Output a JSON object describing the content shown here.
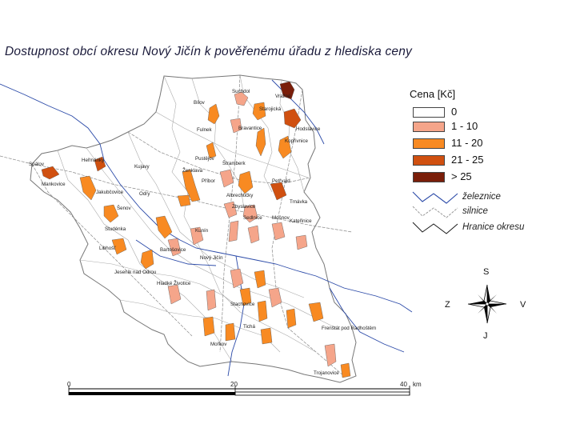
{
  "map": {
    "title": "Dostupnost obcí okresu Nový Jičín k pověřenému úřadu z hlediska ceny"
  },
  "legend": {
    "title": "Cena [Kč]",
    "price_classes": [
      {
        "label": "0",
        "color": "#ffffff"
      },
      {
        "label": "1 - 10",
        "color": "#f5a58a"
      },
      {
        "label": "11 - 20",
        "color": "#f88a22"
      },
      {
        "label": "21 - 25",
        "color": "#d05010"
      },
      {
        "label": "> 25",
        "color": "#7a1e0a"
      }
    ],
    "line_types": [
      {
        "label": "železnice",
        "color": "#2b4aa8"
      },
      {
        "label": "silnice",
        "color": "#9a9a9a"
      },
      {
        "label": "Hranice okresu",
        "color": "#1a1a1a"
      }
    ]
  },
  "compass": {
    "north": "S",
    "south": "J",
    "west": "Z",
    "east": "V"
  },
  "scale": {
    "ticks": [
      "0",
      "20",
      "40"
    ],
    "unit": "km"
  },
  "places": [
    "Vražné",
    "Suchdol",
    "Bílov",
    "Starojická",
    "Bravantice",
    "Hodslavice",
    "Kopřivnice",
    "Fulnek",
    "Jakubčovice",
    "Šenov",
    "Odry",
    "Pustějov",
    "Štramberk",
    "Ženklava",
    "Příbor",
    "Nový Jičín",
    "Mořkov",
    "Jeseník nad Odrou",
    "Bartošovice",
    "Studénka",
    "Albrechtičky",
    "Sedlnice",
    "Mošnov",
    "Petřvald",
    "Trnávka",
    "Kateřinice",
    "Zbyslavice",
    "Heřmánky",
    "Spálov",
    "Mankovice",
    "Libhošť",
    "Frenštát pod Radhoštěm",
    "Trojanovice",
    "Hladké Životice",
    "Kunín",
    "Kujavy",
    "Stachovice",
    "Tichá"
  ]
}
